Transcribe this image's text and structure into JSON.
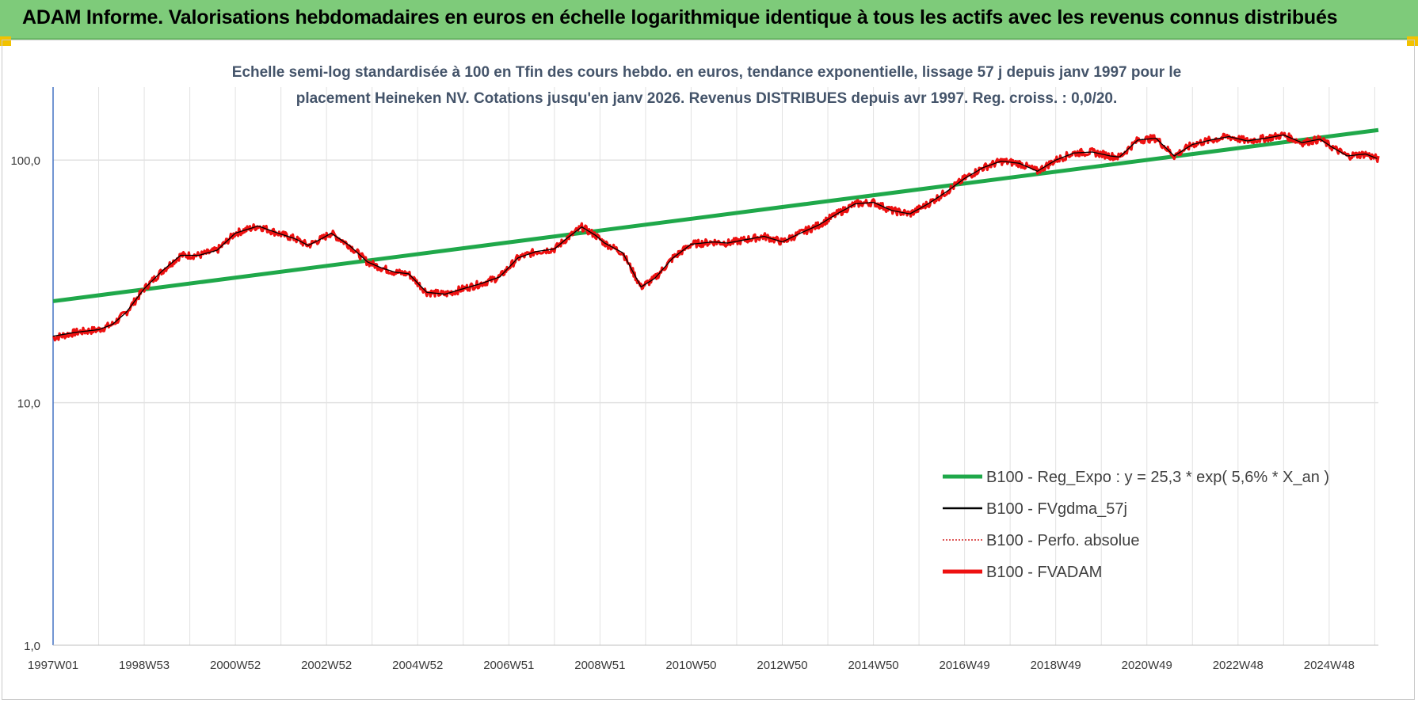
{
  "banner": {
    "title": "ADAM Informe. Valorisations hebdomadaires en euros en échelle logarithmique identique à tous les actifs avec les revenus connus distribués"
  },
  "colors": {
    "banner_bg": "#7ecb7a",
    "regression": "#1fa84a",
    "fvgdma": "#000000",
    "perfo": "#d42020",
    "fvadam": "#ee1111",
    "grid": "#e2e2e2",
    "axis": "#4472c4",
    "text": "#3a3a3a",
    "title_text": "#44546a"
  },
  "chart_data": {
    "type": "line",
    "title_lines": [
      "Echelle semi-log standardisée à 100 en Tfin des cours hebdo. en euros, tendance exponentielle, lissage 57 j depuis janv 1997 pour le",
      "placement Heineken NV. Cotations jusqu'en janv 2026. Revenus DISTRIBUES depuis avr 1997. Reg. croiss. : 0,0/20."
    ],
    "y_scale": "log",
    "ylim": [
      1,
      200
    ],
    "y_ticks": [
      {
        "value": 1,
        "label": "1,0"
      },
      {
        "value": 10,
        "label": "10,0"
      },
      {
        "value": 100,
        "label": "100,0"
      }
    ],
    "x_range": [
      1997.0,
      2026.08
    ],
    "x_ticks": [
      {
        "value": 1997.0,
        "label": "1997W01"
      },
      {
        "value": 1999.0,
        "label": "1998W53"
      },
      {
        "value": 2001.0,
        "label": "2000W52"
      },
      {
        "value": 2003.0,
        "label": "2002W52"
      },
      {
        "value": 2005.0,
        "label": "2004W52"
      },
      {
        "value": 2007.0,
        "label": "2006W51"
      },
      {
        "value": 2009.0,
        "label": "2008W51"
      },
      {
        "value": 2011.0,
        "label": "2010W50"
      },
      {
        "value": 2013.0,
        "label": "2012W50"
      },
      {
        "value": 2015.0,
        "label": "2014W50"
      },
      {
        "value": 2017.0,
        "label": "2016W49"
      },
      {
        "value": 2019.0,
        "label": "2018W49"
      },
      {
        "value": 2021.0,
        "label": "2020W49"
      },
      {
        "value": 2023.0,
        "label": "2022W48"
      },
      {
        "value": 2025.0,
        "label": "2024W48"
      }
    ],
    "legend_position": "bottom-right",
    "series": [
      {
        "name": "B100 - Reg_Expo : y = 25,3 * exp( 5,6% * X_an )",
        "key": "regression",
        "style": "thick",
        "x": [
          1997.0,
          2026.08
        ],
        "values": [
          26.2,
          133.0
        ]
      },
      {
        "name": "B100 - FVgdma_57j",
        "key": "fvgdma",
        "style": "thin",
        "x": [
          1997.0,
          1997.5,
          1998.0,
          1998.3,
          1998.6,
          1999.0,
          1999.4,
          1999.8,
          2000.2,
          2000.6,
          2001.0,
          2001.5,
          2002.0,
          2002.3,
          2002.6,
          2002.9,
          2003.1,
          2003.5,
          2003.9,
          2004.2,
          2004.5,
          2004.8,
          2005.2,
          2005.6,
          2006.0,
          2006.4,
          2006.8,
          2007.2,
          2007.6,
          2008.0,
          2008.3,
          2008.6,
          2008.9,
          2009.1,
          2009.5,
          2009.9,
          2010.2,
          2010.6,
          2011.0,
          2011.5,
          2011.8,
          2012.2,
          2012.6,
          2013.0,
          2013.4,
          2013.8,
          2014.2,
          2014.6,
          2015.0,
          2015.4,
          2015.8,
          2016.2,
          2016.6,
          2017.0,
          2017.4,
          2017.8,
          2018.2,
          2018.6,
          2019.0,
          2019.4,
          2019.8,
          2020.2,
          2020.4,
          2020.8,
          2021.2,
          2021.6,
          2022.0,
          2022.4,
          2022.8,
          2023.2,
          2023.6,
          2024.0,
          2024.4,
          2024.8,
          2025.1,
          2025.4,
          2025.8,
          2026.08
        ],
        "values": [
          18.8,
          19.5,
          20.0,
          21.0,
          23.5,
          29.5,
          35.0,
          40.5,
          40.5,
          42.5,
          50.0,
          53.5,
          49.5,
          47.5,
          44.5,
          47.5,
          50.0,
          44.5,
          38.0,
          36.0,
          34.5,
          34.0,
          28.5,
          28.0,
          29.5,
          31.0,
          33.0,
          39.5,
          42.0,
          43.0,
          48.0,
          53.0,
          49.0,
          45.5,
          41.5,
          30.0,
          32.5,
          39.5,
          45.0,
          46.0,
          45.5,
          47.0,
          48.5,
          46.0,
          50.0,
          54.0,
          60.0,
          66.0,
          67.0,
          62.0,
          60.0,
          66.0,
          74.0,
          84.0,
          93.0,
          99.0,
          97.0,
          90.0,
          100.0,
          107.0,
          108.0,
          104.0,
          103.0,
          121.0,
          123.0,
          104.0,
          116.0,
          121.0,
          125.0,
          120.0,
          123.0,
          127.0,
          118.0,
          122.0,
          112.0,
          104.0,
          106.0,
          101.0
        ]
      },
      {
        "name": "B100 - Perfo. absolue",
        "key": "perfo",
        "style": "dotted",
        "x": [],
        "values": []
      },
      {
        "name": "B100 - FVADAM",
        "key": "fvadam",
        "style": "thick-noisy",
        "x": [
          1997.0,
          1997.5,
          1998.0,
          1998.3,
          1998.6,
          1999.0,
          1999.4,
          1999.8,
          2000.2,
          2000.6,
          2001.0,
          2001.5,
          2002.0,
          2002.3,
          2002.6,
          2002.9,
          2003.1,
          2003.5,
          2003.9,
          2004.2,
          2004.5,
          2004.8,
          2005.2,
          2005.6,
          2006.0,
          2006.4,
          2006.8,
          2007.2,
          2007.6,
          2008.0,
          2008.3,
          2008.6,
          2008.9,
          2009.1,
          2009.5,
          2009.9,
          2010.2,
          2010.6,
          2011.0,
          2011.5,
          2011.8,
          2012.2,
          2012.6,
          2013.0,
          2013.4,
          2013.8,
          2014.2,
          2014.6,
          2015.0,
          2015.4,
          2015.8,
          2016.2,
          2016.6,
          2017.0,
          2017.4,
          2017.8,
          2018.2,
          2018.6,
          2019.0,
          2019.4,
          2019.8,
          2020.2,
          2020.4,
          2020.8,
          2021.2,
          2021.6,
          2022.0,
          2022.4,
          2022.8,
          2023.2,
          2023.6,
          2024.0,
          2024.4,
          2024.8,
          2025.1,
          2025.4,
          2025.8,
          2026.08
        ],
        "values": [
          18.5,
          19.5,
          20.0,
          21.0,
          23.5,
          29.5,
          35.0,
          40.5,
          40.5,
          42.5,
          50.0,
          53.5,
          49.5,
          47.5,
          44.5,
          47.5,
          50.0,
          44.5,
          38.0,
          36.0,
          34.5,
          34.0,
          28.5,
          28.0,
          29.5,
          31.0,
          33.0,
          39.5,
          42.0,
          43.0,
          48.0,
          53.0,
          49.0,
          45.5,
          41.5,
          30.0,
          32.5,
          39.5,
          45.0,
          46.0,
          45.5,
          47.0,
          48.5,
          46.0,
          50.0,
          54.0,
          60.0,
          66.0,
          67.0,
          62.0,
          60.0,
          66.0,
          74.0,
          84.0,
          93.0,
          99.0,
          97.0,
          90.0,
          100.0,
          107.0,
          108.0,
          104.0,
          103.0,
          121.0,
          123.0,
          104.0,
          116.0,
          121.0,
          125.0,
          120.0,
          123.0,
          127.0,
          118.0,
          122.0,
          112.0,
          104.0,
          106.0,
          101.0
        ]
      }
    ]
  }
}
